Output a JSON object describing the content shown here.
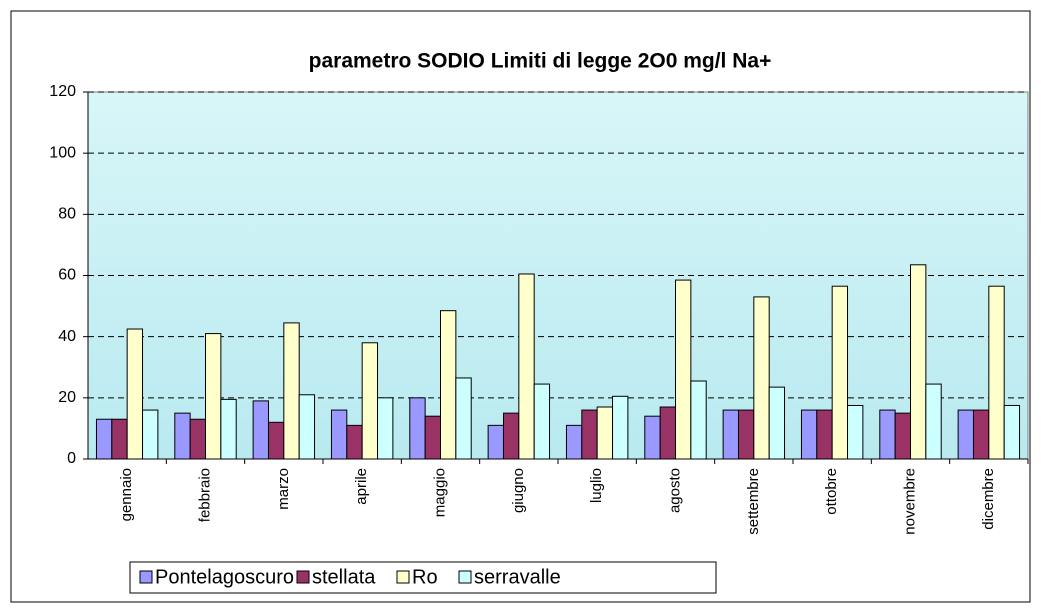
{
  "chart_data": {
    "type": "bar",
    "title": "parametro SODIO Limiti di legge 2O0 mg/l Na+",
    "categories": [
      "gennaio",
      "febbraio",
      "marzo",
      "aprile",
      "maggio",
      "giugno",
      "luglio",
      "agosto",
      "settembre",
      "ottobre",
      "novembre",
      "dicembre"
    ],
    "series": [
      {
        "name": "Pontelagoscuro",
        "color": "#9999ff",
        "values": [
          13,
          15,
          19,
          16,
          20,
          11,
          11,
          14,
          16,
          16,
          16,
          16
        ]
      },
      {
        "name": "stellata",
        "color": "#993366",
        "values": [
          13,
          13,
          12,
          11,
          14,
          15,
          16,
          17,
          16,
          16,
          15,
          16
        ]
      },
      {
        "name": "Ro",
        "color": "#ffffcc",
        "values": [
          42.5,
          41,
          44.5,
          38,
          48.5,
          60.5,
          17,
          58.5,
          53,
          56.5,
          63.5,
          56.5
        ]
      },
      {
        "name": "serravalle",
        "color": "#ccffff",
        "values": [
          16,
          19.5,
          21,
          20,
          26.5,
          24.5,
          20.5,
          25.5,
          23.5,
          17.5,
          24.5,
          17.5
        ]
      }
    ],
    "ylim": [
      0,
      120
    ],
    "yticks": [
      0,
      20,
      40,
      60,
      80,
      100,
      120
    ],
    "grid": true,
    "legend": "bottom"
  }
}
